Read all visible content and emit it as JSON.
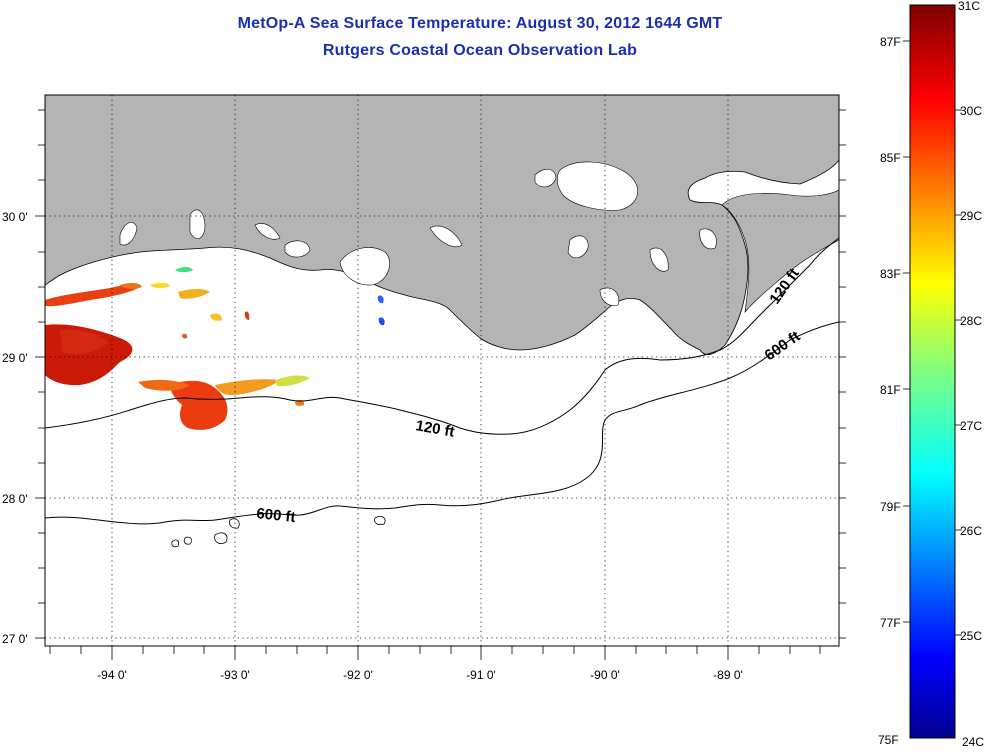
{
  "title": {
    "line1": "MetOp-A Sea Surface Temperature:  August 30, 2012 1644 GMT",
    "line2": "Rutgers Coastal Ocean Observation Lab"
  },
  "map": {
    "lon_range": [
      -94.55,
      -88.1
    ],
    "lat_range": [
      26.95,
      29.9
    ],
    "lat_ticks": [
      {
        "value": 30,
        "label": "30 0'"
      },
      {
        "value": 29,
        "label": "29 0'"
      },
      {
        "value": 28,
        "label": "28 0'"
      },
      {
        "value": 27,
        "label": "27 0'"
      }
    ],
    "lon_ticks": [
      {
        "value": -94,
        "label": "-94 0'"
      },
      {
        "value": -93,
        "label": "-93 0'"
      },
      {
        "value": -92,
        "label": "-92 0'"
      },
      {
        "value": -91,
        "label": "-91 0'"
      },
      {
        "value": -90,
        "label": "-90 0'"
      },
      {
        "value": -89,
        "label": "-89 0'"
      }
    ],
    "land_color": "#b4b4b4",
    "grid": "dotted",
    "contours": [
      {
        "label": "120 ft",
        "depth_ft": 120
      },
      {
        "label": "600 ft",
        "depth_ft": 600
      },
      {
        "label": "120 ft",
        "depth_ft": 120
      },
      {
        "label": "600 ft",
        "depth_ft": 600
      }
    ]
  },
  "colorbar": {
    "colormap": "jet",
    "min_c": 24,
    "max_c": 31,
    "celsius_labels": [
      "31C",
      "30C",
      "29C",
      "28C",
      "27C",
      "26C",
      "25C",
      "24C"
    ],
    "fahrenheit_labels": [
      {
        "value": 87,
        "label": "87F"
      },
      {
        "value": 85,
        "label": "85F"
      },
      {
        "value": 83,
        "label": "83F"
      },
      {
        "value": 81,
        "label": "81F"
      },
      {
        "value": 79,
        "label": "79F"
      },
      {
        "value": 77,
        "label": "77F"
      },
      {
        "value": 75,
        "label": "75F"
      }
    ]
  }
}
